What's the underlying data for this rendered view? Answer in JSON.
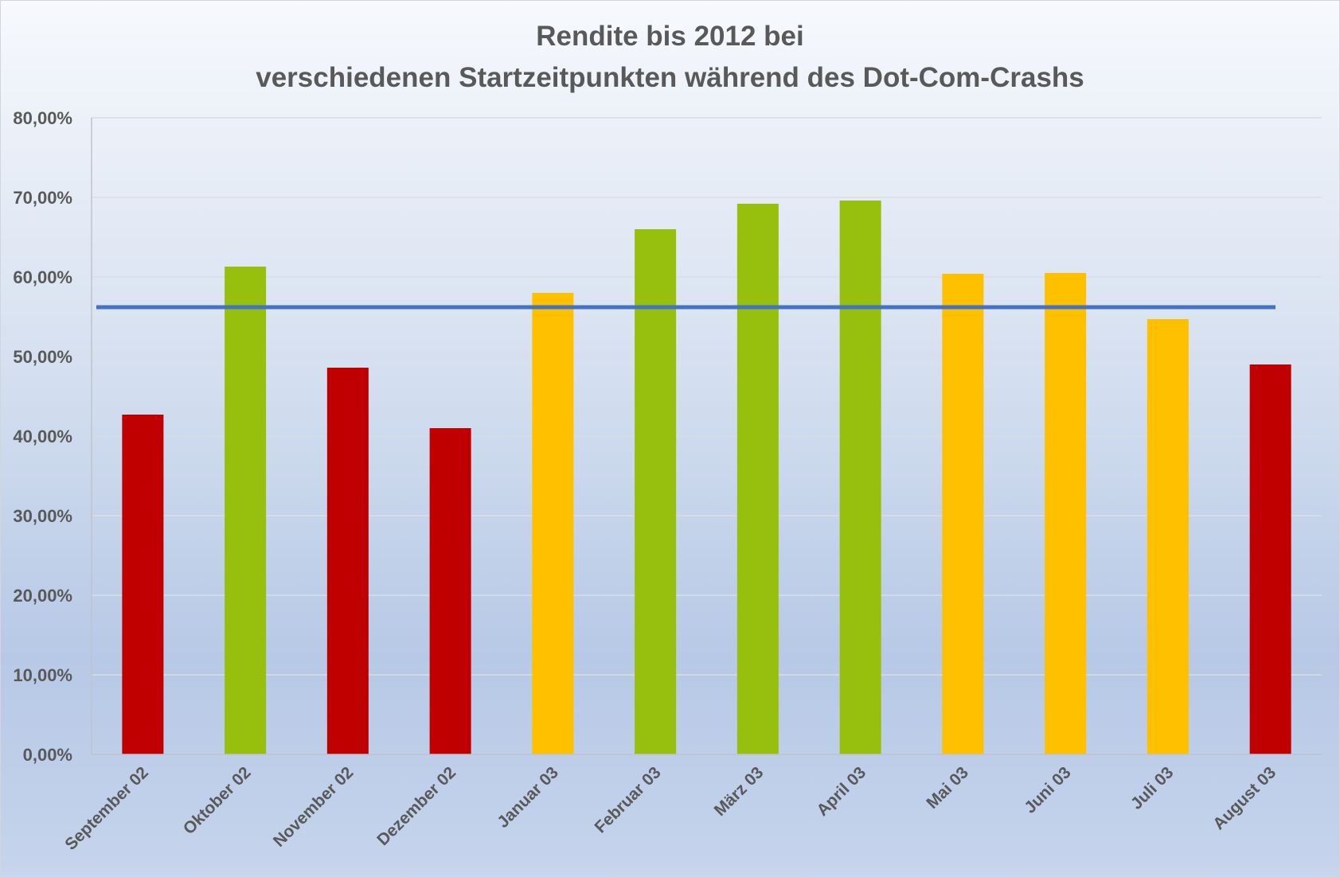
{
  "chart_data": {
    "type": "bar",
    "title_lines": [
      "Rendite bis 2012 bei",
      "verschiedenen Startzeitpunkten während des Dot-Com-Crashs"
    ],
    "categories": [
      "September 02",
      "Oktober 02",
      "November 02",
      "Dezember 02",
      "Januar 03",
      "Februar 03",
      "März 03",
      "April 03",
      "Mai 03",
      "Juni 03",
      "Juli 03",
      "August 03"
    ],
    "values": [
      42.7,
      61.3,
      48.6,
      41.0,
      58.0,
      66.0,
      69.2,
      69.6,
      60.4,
      60.5,
      54.7,
      49.0
    ],
    "bar_colors": [
      "#c00000",
      "#97bf0d",
      "#c00000",
      "#c00000",
      "#ffc000",
      "#97bf0d",
      "#97bf0d",
      "#97bf0d",
      "#ffc000",
      "#ffc000",
      "#ffc000",
      "#c00000"
    ],
    "reference_line": {
      "value": 56.2,
      "color": "#4472c4"
    },
    "ylim": [
      0,
      80
    ],
    "yticks": [
      0,
      10,
      20,
      30,
      40,
      50,
      60,
      70,
      80
    ],
    "ytick_labels": [
      "0,00%",
      "10,00%",
      "20,00%",
      "30,00%",
      "40,00%",
      "50,00%",
      "60,00%",
      "70,00%",
      "80,00%"
    ],
    "grid": true,
    "legend": "none",
    "xlabel": "",
    "ylabel": ""
  }
}
